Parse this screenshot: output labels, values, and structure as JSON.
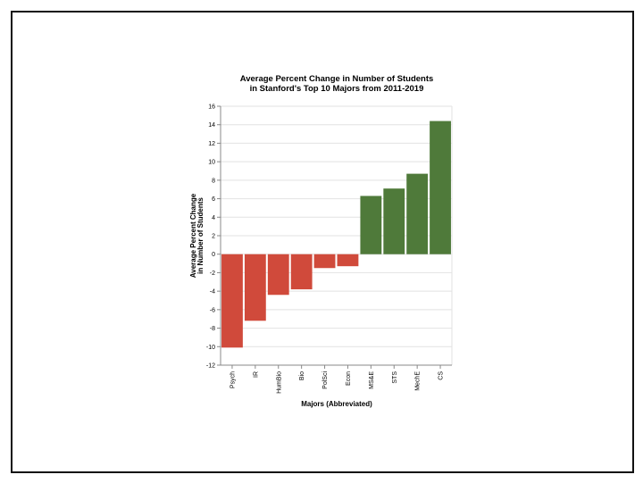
{
  "chart_data": {
    "type": "bar",
    "title": [
      "Average Percent Change in Number of Students",
      "in Stanford's Top 10 Majors from 2011-2019"
    ],
    "xlabel": "Majors (Abbreviated)",
    "ylabel": [
      "Average Percent Change",
      "in Number of Students"
    ],
    "categories": [
      "Psych",
      "IR",
      "HumBio",
      "Bio",
      "PolSci",
      "Econ",
      "MS&E",
      "STS",
      "MechE",
      "CS"
    ],
    "values": [
      -10.1,
      -7.2,
      -4.4,
      -3.8,
      -1.5,
      -1.3,
      6.3,
      7.1,
      8.7,
      14.4
    ],
    "ylim": [
      -12,
      16
    ],
    "yticks": [
      -12,
      -10,
      -8,
      -6,
      -4,
      -2,
      0,
      2,
      4,
      6,
      8,
      10,
      12,
      14,
      16
    ],
    "grid": true,
    "colors": {
      "negative": "#d04a3b",
      "positive": "#4f7a3a",
      "grid": "#e2e2e2",
      "axis": "#888888",
      "frame": "#111111"
    }
  }
}
